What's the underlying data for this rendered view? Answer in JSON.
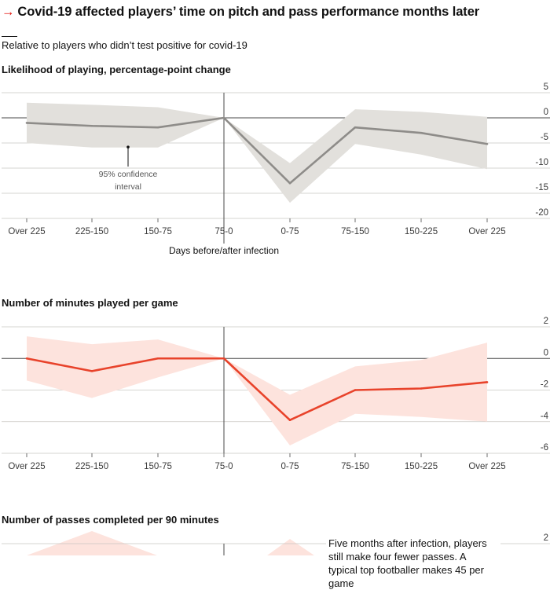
{
  "header": {
    "title": "Covid-19 affected players’ time on pitch and pass performance months later",
    "title_arrow": "→",
    "subtitle": "Relative to players who didn’t test positive for covid-19"
  },
  "annotation": "Five months after infection, players still make four fewer passes. A typical top footballer makes 45 per game",
  "colors": {
    "grey_line": "#8e8c89",
    "grey_band": "#e2e0dc",
    "red_line": "#e8432b",
    "red_band": "#fde3dd",
    "accent": "#e3120b"
  },
  "chart_data": [
    {
      "type": "line",
      "title": "Likelihood of playing, percentage-point change",
      "xlabel": "Days before/after infection",
      "ylabel": "",
      "categories": [
        "Over 225",
        "225-150",
        "150-75",
        "75-0",
        "0-75",
        "75-150",
        "150-225",
        "Over 225"
      ],
      "series": [
        {
          "values": [
            -1,
            -1.6,
            -1.9,
            0,
            -13,
            -1.9,
            -3,
            -5.2
          ]
        }
      ],
      "ci_lower": [
        -5,
        -5.9,
        -5.9,
        0,
        -16.9,
        -5.2,
        -7.3,
        -10.2
      ],
      "ci_upper": [
        3,
        2.6,
        2.1,
        0,
        -9,
        1.7,
        1.2,
        0.2
      ],
      "ci_label": "95% confidence interval",
      "ylim": [
        -20,
        5
      ],
      "yticks": [
        5,
        0,
        -5,
        -10,
        -15,
        -20
      ],
      "ytick_labels": [
        "5",
        "0",
        "-5",
        "-10",
        "-15",
        "-20"
      ]
    },
    {
      "type": "line",
      "title": "Number of minutes played per game",
      "xlabel": "",
      "ylabel": "",
      "categories": [
        "Over 225",
        "225-150",
        "150-75",
        "75-0",
        "0-75",
        "75-150",
        "150-225",
        "Over 225"
      ],
      "series": [
        {
          "values": [
            0,
            -0.8,
            0,
            0,
            -3.9,
            -2,
            -1.9,
            -1.5
          ]
        }
      ],
      "ci_lower": [
        -1.4,
        -2.5,
        -1.2,
        0,
        -5.5,
        -3.5,
        -3.7,
        -4
      ],
      "ci_upper": [
        1.4,
        0.9,
        1.2,
        0,
        -2.3,
        -0.5,
        -0.1,
        1
      ],
      "ylim": [
        -6,
        2
      ],
      "yticks": [
        2,
        0,
        -2,
        -4,
        -6
      ],
      "ytick_labels": [
        "2",
        "0",
        "-2",
        "-4",
        "-6"
      ]
    },
    {
      "type": "line",
      "title": "Number of passes completed per 90 minutes",
      "ylim_top_label": "2"
    }
  ]
}
